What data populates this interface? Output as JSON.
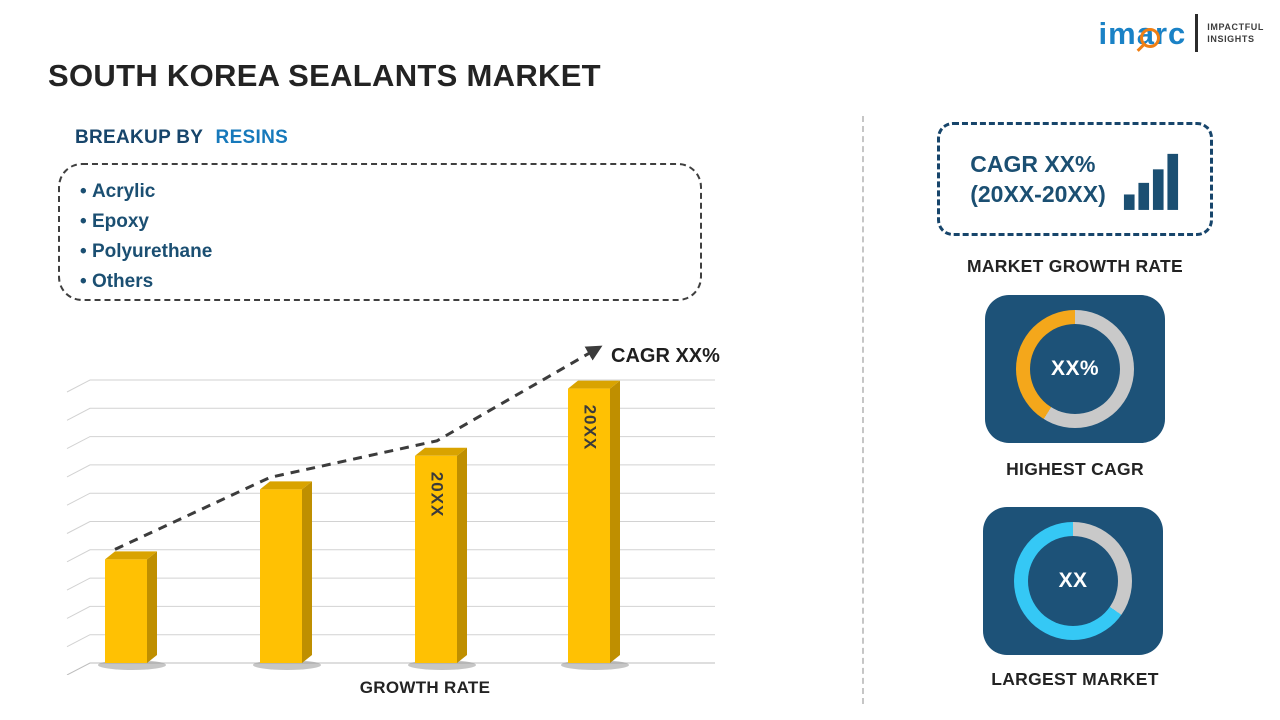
{
  "page": {
    "title": "SOUTH KOREA SEALANTS MARKET"
  },
  "logo": {
    "brand": "imarc",
    "tagline_line1": "IMPACTFUL",
    "tagline_line2": "INSIGHTS"
  },
  "breakup": {
    "heading_prefix": "BREAKUP BY",
    "heading_highlight": "RESINS",
    "items": [
      "Acrylic",
      "Epoxy",
      "Polyurethane",
      "Others"
    ]
  },
  "chart_data": {
    "type": "bar",
    "title": "",
    "categories": [
      "",
      "",
      "20XX",
      "20XX"
    ],
    "values": [
      37,
      62,
      74,
      98
    ],
    "ylim": [
      0,
      100
    ],
    "grid": "horizontal",
    "xlabel": "GROWTH RATE",
    "ylabel": "",
    "trend_label": "CAGR XX%",
    "trend_style": "dashed-arrow-up",
    "bar_style": "3d-gold"
  },
  "right_panel": {
    "growth_box": {
      "line1": "CAGR XX%",
      "line2": "(20XX-20XX)",
      "icon": "bar-chart-icon",
      "caption": "MARKET GROWTH RATE"
    },
    "highest_cagr": {
      "value": "XX%",
      "caption": "HIGHEST CAGR",
      "ring": {
        "base_color": "#C9C9C9",
        "arc_color": "#F4A71B",
        "arc_start_deg": 212,
        "arc_end_deg": 360
      }
    },
    "largest_market": {
      "value": "XX",
      "caption": "LARGEST MARKET",
      "ring": {
        "base_color": "#C9C9C9",
        "arc_color": "#35C8F5",
        "arc_start_deg": 125,
        "arc_end_deg": 360
      }
    }
  },
  "colors": {
    "accent_navy": "#1B4F72",
    "navy_dark": "#17456B",
    "blue_bright": "#1779BB",
    "bar_front": "#FFC103",
    "bar_side": "#BF8F00",
    "bar_top": "#D9A300",
    "card_bg": "#1D5278",
    "logo_blue": "#1A82C6",
    "logo_orange": "#F07F13",
    "trend_line": "#3C3C3C",
    "gridline": "#D2D2D2"
  }
}
